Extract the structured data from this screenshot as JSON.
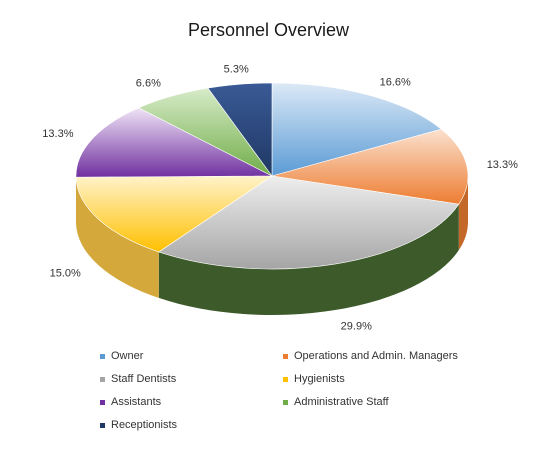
{
  "chart_data": {
    "type": "pie",
    "title": "Personnel Overview",
    "categories": [
      "Owner",
      "Operations and Admin. Managers",
      "Staff Dentists",
      "Hygienists",
      "Assistants",
      "Administrative Staff",
      "Receptionists"
    ],
    "values": [
      16.6,
      13.3,
      29.9,
      15.0,
      13.3,
      6.6,
      5.3
    ],
    "labels": [
      "16.6%",
      "13.3%",
      "29.9%",
      "15.0%",
      "13.3%",
      "6.6%",
      "5.3%"
    ],
    "colors": [
      "#5b9bd5",
      "#ed7d31",
      "#a5a5a5",
      "#ffc000",
      "#7030a0",
      "#70ad47",
      "#1f3864"
    ],
    "light_colors": [
      "#dce9f6",
      "#fbe1cf",
      "#eeeeee",
      "#fff3c9",
      "#efe3f6",
      "#d7ebc9",
      "#3a5a96"
    ],
    "side_colors": [
      "#4a7fb0",
      "#c4682a",
      "#3d5a2a",
      "#d4a83a",
      "#5a287f",
      "#4f8a2e",
      "#172a4c"
    ],
    "legend_position": "bottom",
    "three_d": true
  }
}
